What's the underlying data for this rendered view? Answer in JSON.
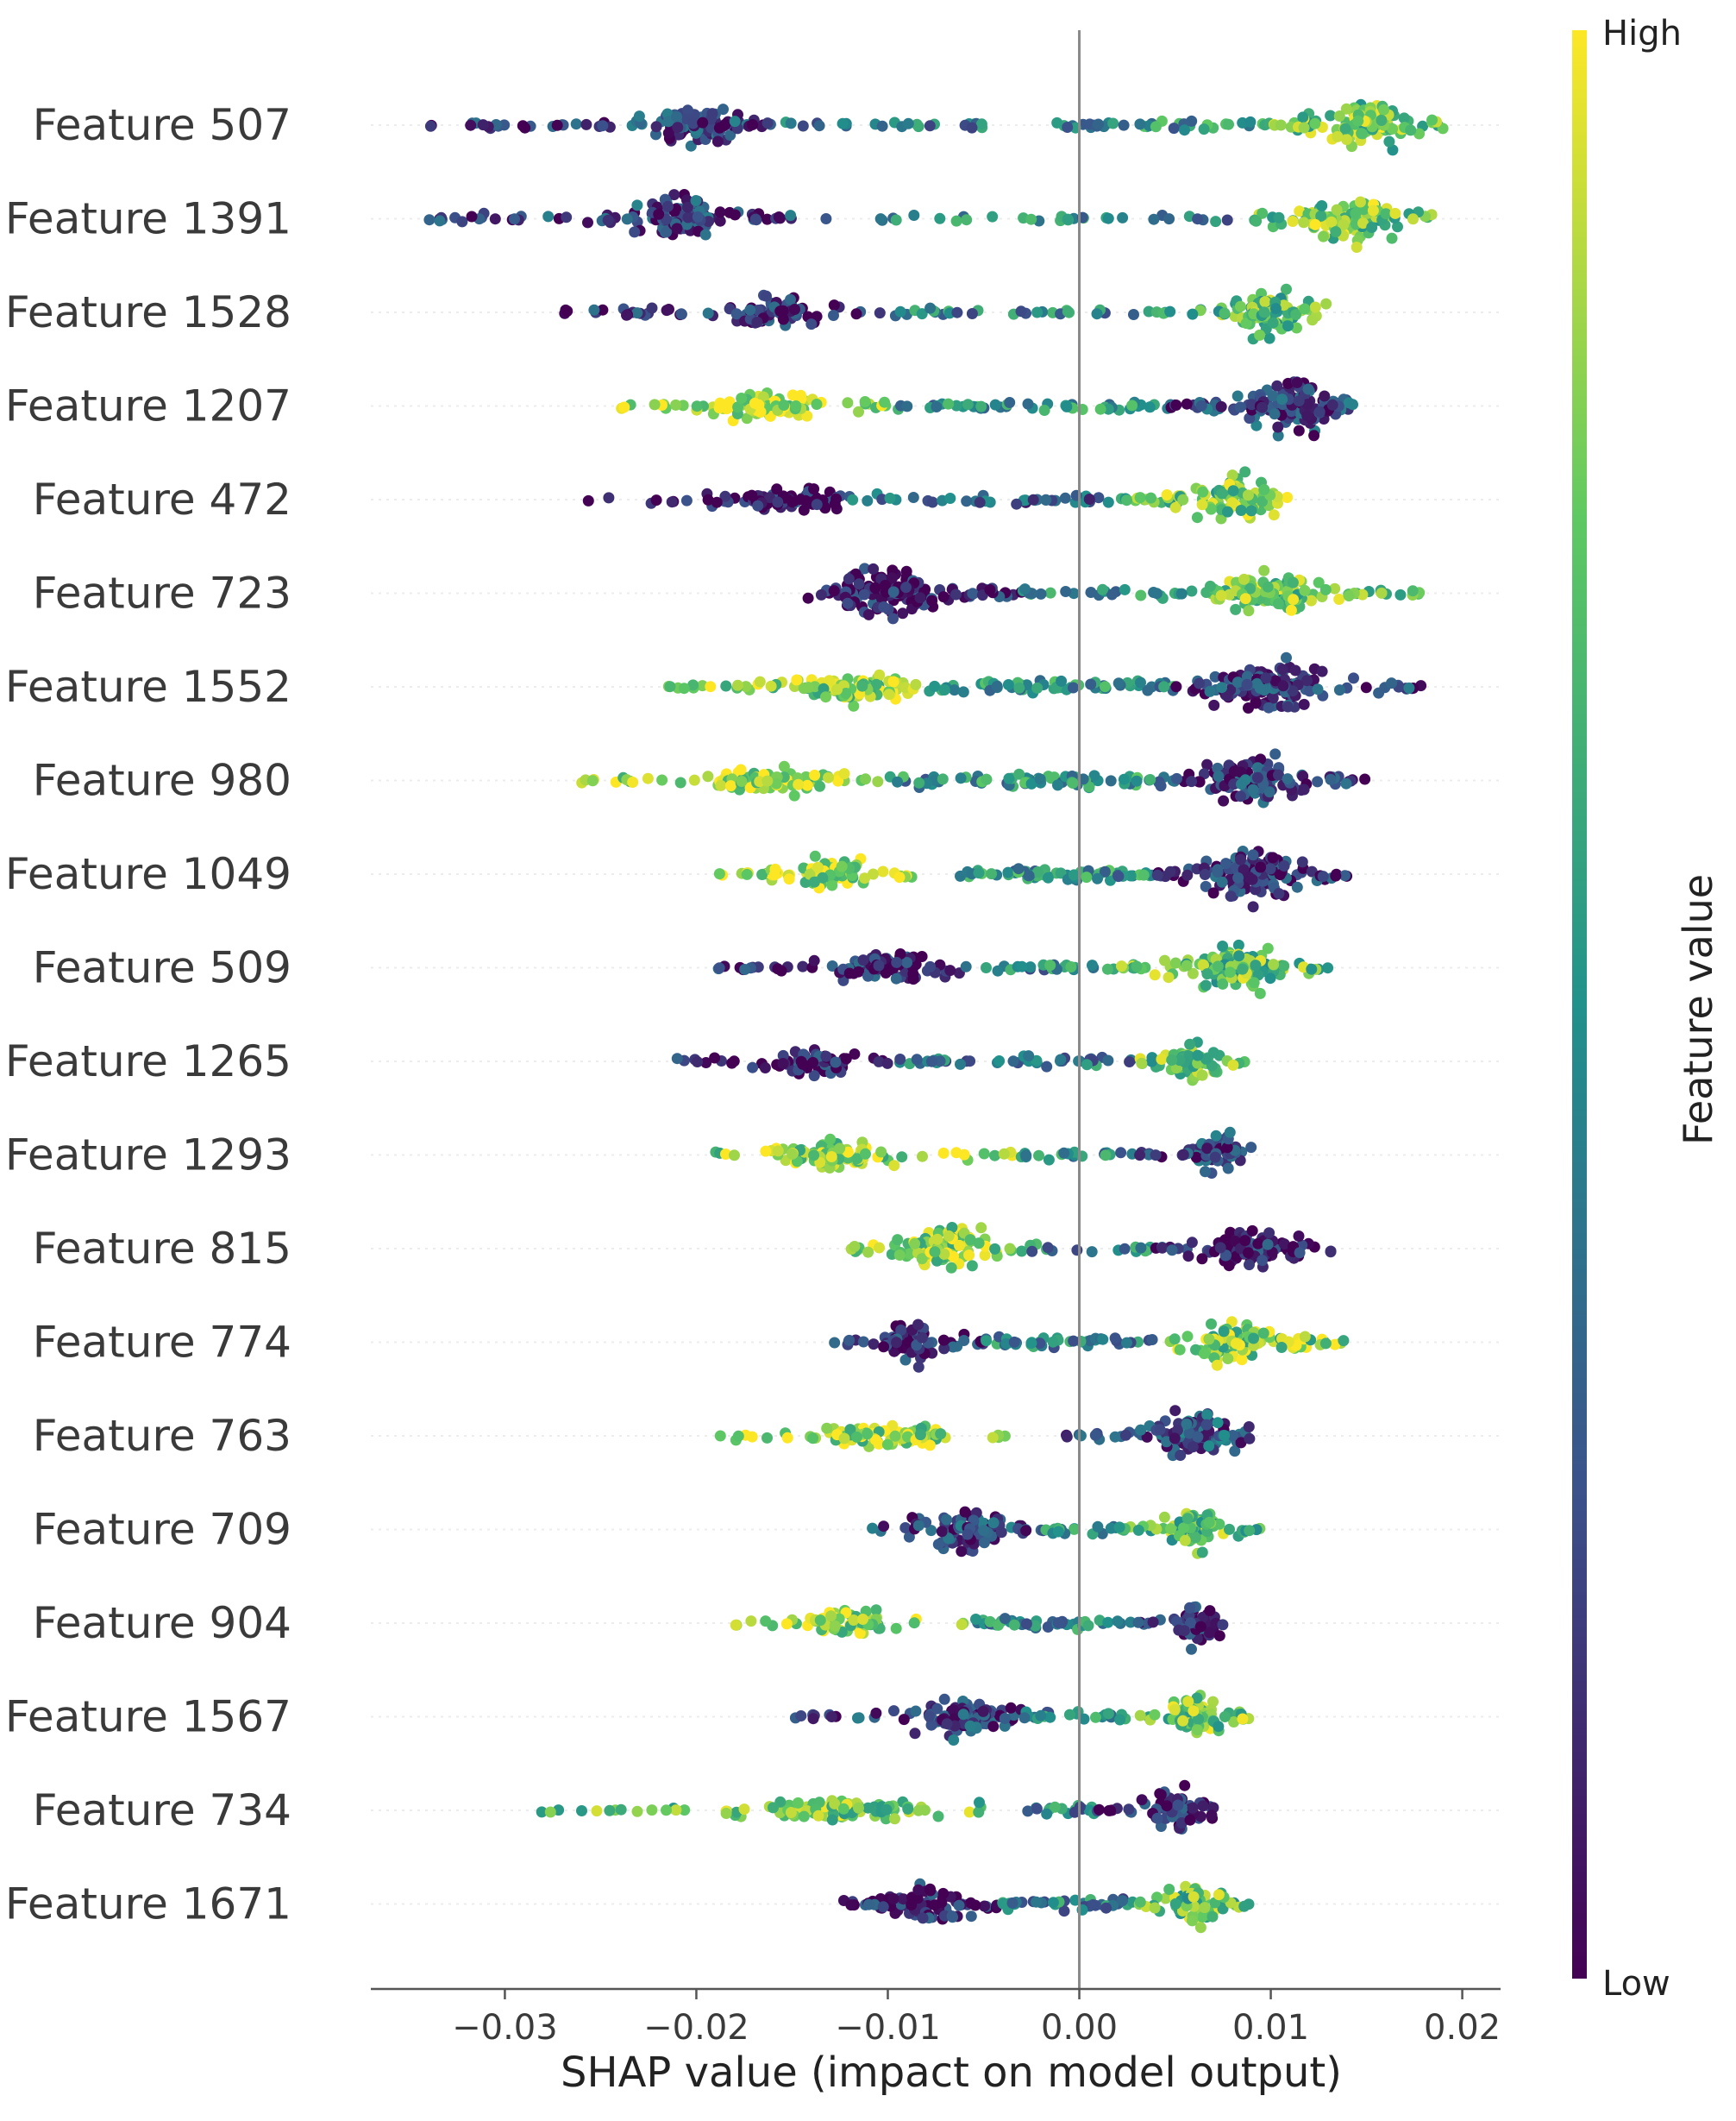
{
  "chart_data": {
    "type": "scatter",
    "subtype": "shap-beeswarm-summary",
    "title": "",
    "xlabel": "SHAP value (impact on model output)",
    "ylabel": "",
    "xlim": [
      -0.037,
      0.022
    ],
    "xticks": [
      -0.03,
      -0.02,
      -0.01,
      0.0,
      0.01,
      0.02
    ],
    "xtick_labels": [
      "−0.03",
      "−0.02",
      "−0.01",
      "0.00",
      "0.01",
      "0.02"
    ],
    "zero_line": 0.0,
    "colorbar": {
      "title": "Feature value",
      "high_label": "High",
      "low_label": "Low",
      "colormap": [
        "#440154",
        "#3b528b",
        "#21918c",
        "#5ec962",
        "#fde725"
      ]
    },
    "features": [
      {
        "name": "Feature 507",
        "min": -0.034,
        "max": 0.019,
        "segments": [
          {
            "from": -0.034,
            "to": -0.026,
            "density": 0.15,
            "color": 0.15
          },
          {
            "from": -0.026,
            "to": -0.016,
            "density": 0.85,
            "color": 0.2,
            "peak": -0.02
          },
          {
            "from": -0.016,
            "to": -0.005,
            "density": 0.15,
            "color": 0.45
          },
          {
            "from": -0.002,
            "to": 0.01,
            "density": 0.25,
            "color": 0.5
          },
          {
            "from": 0.01,
            "to": 0.019,
            "density": 1.0,
            "color": 0.75,
            "peak": 0.015
          }
        ]
      },
      {
        "name": "Feature 1391",
        "min": -0.034,
        "max": 0.019,
        "segments": [
          {
            "from": -0.034,
            "to": -0.026,
            "density": 0.15,
            "color": 0.2
          },
          {
            "from": -0.026,
            "to": -0.015,
            "density": 0.8,
            "color": 0.2,
            "peak": -0.021
          },
          {
            "from": -0.015,
            "to": 0.008,
            "density": 0.1,
            "color": 0.45
          },
          {
            "from": 0.008,
            "to": 0.019,
            "density": 0.9,
            "color": 0.75,
            "peak": 0.014
          }
        ]
      },
      {
        "name": "Feature 1528",
        "min": -0.027,
        "max": 0.013,
        "segments": [
          {
            "from": -0.027,
            "to": -0.02,
            "density": 0.2,
            "color": 0.15
          },
          {
            "from": -0.02,
            "to": -0.01,
            "density": 0.55,
            "color": 0.15,
            "peak": -0.016
          },
          {
            "from": -0.01,
            "to": 0.004,
            "density": 0.15,
            "color": 0.45
          },
          {
            "from": 0.004,
            "to": 0.013,
            "density": 0.9,
            "color": 0.7,
            "peak": 0.01
          }
        ]
      },
      {
        "name": "Feature 1207",
        "min": -0.024,
        "max": 0.015,
        "segments": [
          {
            "from": -0.024,
            "to": -0.01,
            "density": 0.55,
            "color": 0.88,
            "peak": -0.016
          },
          {
            "from": -0.01,
            "to": 0.004,
            "density": 0.25,
            "color": 0.5
          },
          {
            "from": 0.004,
            "to": 0.015,
            "density": 1.0,
            "color": 0.2,
            "peak": 0.011
          }
        ]
      },
      {
        "name": "Feature 472",
        "min": -0.027,
        "max": 0.011,
        "segments": [
          {
            "from": -0.027,
            "to": -0.012,
            "density": 0.45,
            "color": 0.08,
            "peak": -0.015
          },
          {
            "from": -0.012,
            "to": 0.002,
            "density": 0.2,
            "color": 0.3
          },
          {
            "from": 0.002,
            "to": 0.011,
            "density": 0.95,
            "color": 0.75,
            "peak": 0.008
          }
        ]
      },
      {
        "name": "Feature 723",
        "min": -0.015,
        "max": 0.018,
        "segments": [
          {
            "from": -0.015,
            "to": -0.003,
            "density": 0.95,
            "color": 0.1,
            "peak": -0.01
          },
          {
            "from": -0.003,
            "to": 0.006,
            "density": 0.2,
            "color": 0.5
          },
          {
            "from": 0.006,
            "to": 0.018,
            "density": 0.75,
            "color": 0.78,
            "peak": 0.01
          }
        ]
      },
      {
        "name": "Feature 1552",
        "min": -0.022,
        "max": 0.018,
        "segments": [
          {
            "from": -0.022,
            "to": -0.008,
            "density": 0.6,
            "color": 0.82,
            "peak": -0.012
          },
          {
            "from": -0.008,
            "to": 0.005,
            "density": 0.4,
            "color": 0.5
          },
          {
            "from": 0.005,
            "to": 0.018,
            "density": 0.95,
            "color": 0.18,
            "peak": 0.01
          }
        ]
      },
      {
        "name": "Feature 980",
        "min": -0.026,
        "max": 0.015,
        "segments": [
          {
            "from": -0.026,
            "to": -0.01,
            "density": 0.45,
            "color": 0.85,
            "peak": -0.016
          },
          {
            "from": -0.01,
            "to": 0.005,
            "density": 0.4,
            "color": 0.5
          },
          {
            "from": 0.005,
            "to": 0.015,
            "density": 1.0,
            "color": 0.18,
            "peak": 0.009
          }
        ]
      },
      {
        "name": "Feature 1049",
        "min": -0.019,
        "max": 0.014,
        "segments": [
          {
            "from": -0.019,
            "to": -0.008,
            "density": 0.6,
            "color": 0.85,
            "peak": -0.013
          },
          {
            "from": -0.008,
            "to": 0.004,
            "density": 0.4,
            "color": 0.5
          },
          {
            "from": 0.004,
            "to": 0.014,
            "density": 1.0,
            "color": 0.15,
            "peak": 0.009
          }
        ]
      },
      {
        "name": "Feature 509",
        "min": -0.019,
        "max": 0.013,
        "segments": [
          {
            "from": -0.019,
            "to": -0.006,
            "density": 0.55,
            "color": 0.12,
            "peak": -0.01
          },
          {
            "from": -0.006,
            "to": 0.002,
            "density": 0.2,
            "color": 0.45
          },
          {
            "from": 0.002,
            "to": 0.013,
            "density": 0.9,
            "color": 0.72,
            "peak": 0.008
          }
        ]
      },
      {
        "name": "Feature 1265",
        "min": -0.021,
        "max": 0.009,
        "segments": [
          {
            "from": -0.021,
            "to": -0.01,
            "density": 0.5,
            "color": 0.1,
            "peak": -0.014
          },
          {
            "from": -0.01,
            "to": 0.003,
            "density": 0.25,
            "color": 0.4
          },
          {
            "from": 0.003,
            "to": 0.009,
            "density": 0.85,
            "color": 0.72,
            "peak": 0.006
          }
        ]
      },
      {
        "name": "Feature 1293",
        "min": -0.019,
        "max": 0.009,
        "segments": [
          {
            "from": -0.019,
            "to": -0.003,
            "density": 0.5,
            "color": 0.82,
            "peak": -0.013
          },
          {
            "from": -0.003,
            "to": 0.003,
            "density": 0.2,
            "color": 0.45
          },
          {
            "from": 0.003,
            "to": 0.009,
            "density": 0.85,
            "color": 0.2,
            "peak": 0.007
          }
        ]
      },
      {
        "name": "Feature 815",
        "min": -0.012,
        "max": 0.014,
        "segments": [
          {
            "from": -0.012,
            "to": -0.003,
            "density": 1.0,
            "color": 0.82,
            "peak": -0.007
          },
          {
            "from": -0.003,
            "to": 0.004,
            "density": 0.15,
            "color": 0.45
          },
          {
            "from": 0.004,
            "to": 0.014,
            "density": 0.75,
            "color": 0.12,
            "peak": 0.009
          }
        ]
      },
      {
        "name": "Feature 774",
        "min": -0.013,
        "max": 0.014,
        "segments": [
          {
            "from": -0.013,
            "to": -0.005,
            "density": 0.75,
            "color": 0.12,
            "peak": -0.009
          },
          {
            "from": -0.005,
            "to": 0.004,
            "density": 0.35,
            "color": 0.45
          },
          {
            "from": 0.004,
            "to": 0.014,
            "density": 0.85,
            "color": 0.78,
            "peak": 0.008
          }
        ]
      },
      {
        "name": "Feature 763",
        "min": -0.019,
        "max": 0.009,
        "segments": [
          {
            "from": -0.019,
            "to": -0.003,
            "density": 0.45,
            "color": 0.82,
            "peak": -0.01
          },
          {
            "from": -0.001,
            "to": 0.009,
            "density": 0.9,
            "color": 0.25,
            "peak": 0.006
          }
        ]
      },
      {
        "name": "Feature 709",
        "min": -0.011,
        "max": 0.01,
        "segments": [
          {
            "from": -0.011,
            "to": -0.002,
            "density": 0.85,
            "color": 0.22,
            "peak": -0.006
          },
          {
            "from": -0.002,
            "to": 0.002,
            "density": 0.3,
            "color": 0.45
          },
          {
            "from": 0.002,
            "to": 0.01,
            "density": 0.9,
            "color": 0.72,
            "peak": 0.006
          }
        ]
      },
      {
        "name": "Feature 904",
        "min": -0.018,
        "max": 0.008,
        "segments": [
          {
            "from": -0.018,
            "to": -0.006,
            "density": 0.45,
            "color": 0.82,
            "peak": -0.012
          },
          {
            "from": -0.006,
            "to": 0.003,
            "density": 0.35,
            "color": 0.45
          },
          {
            "from": 0.003,
            "to": 0.008,
            "density": 0.9,
            "color": 0.12,
            "peak": 0.006
          }
        ]
      },
      {
        "name": "Feature 1567",
        "min": -0.015,
        "max": 0.009,
        "segments": [
          {
            "from": -0.015,
            "to": -0.003,
            "density": 0.7,
            "color": 0.2,
            "peak": -0.006
          },
          {
            "from": -0.003,
            "to": 0.003,
            "density": 0.3,
            "color": 0.45
          },
          {
            "from": 0.003,
            "to": 0.009,
            "density": 0.9,
            "color": 0.75,
            "peak": 0.006
          }
        ]
      },
      {
        "name": "Feature 734",
        "min": -0.029,
        "max": 0.007,
        "segments": [
          {
            "from": -0.029,
            "to": -0.005,
            "density": 0.35,
            "color": 0.75,
            "peak": -0.012
          },
          {
            "from": -0.003,
            "to": 0.001,
            "density": 0.3,
            "color": 0.45
          },
          {
            "from": 0.001,
            "to": 0.007,
            "density": 0.85,
            "color": 0.1,
            "peak": 0.005
          }
        ]
      },
      {
        "name": "Feature 1671",
        "min": -0.013,
        "max": 0.009,
        "segments": [
          {
            "from": -0.013,
            "to": -0.004,
            "density": 0.75,
            "color": 0.1,
            "peak": -0.008
          },
          {
            "from": -0.004,
            "to": 0.003,
            "density": 0.4,
            "color": 0.42
          },
          {
            "from": 0.003,
            "to": 0.009,
            "density": 0.9,
            "color": 0.72,
            "peak": 0.006
          }
        ]
      }
    ]
  }
}
